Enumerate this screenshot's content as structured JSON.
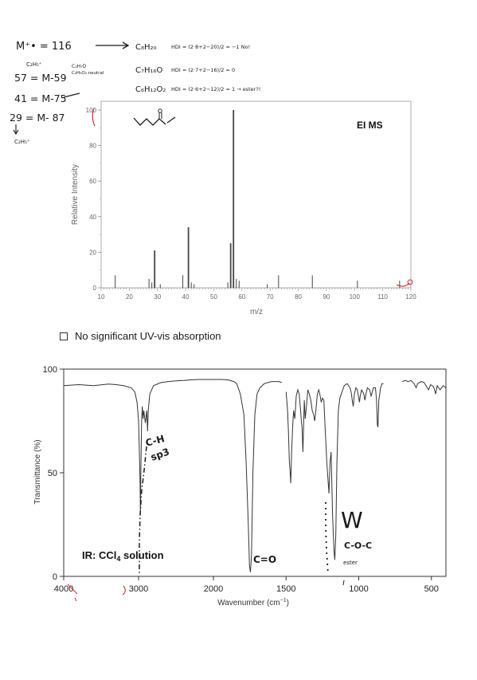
{
  "notes": {
    "m_line": "M⁺• = 116",
    "f57": "57 = M-59",
    "f57_sub": "C₂H₅⁺",
    "f57_side1": "C₃H₇O",
    "f57_side2": "C₂H₅O₂ neutral",
    "f41": "41 = M-75",
    "f29": "29 = M- 87",
    "f29_sub": "C₂H₅⁺",
    "formula1": "C₈H₂₀",
    "formula1_calc": "HDI = (2·8+2−20)/2 = −1  No!",
    "formula2": "C₇H₁₆O",
    "formula2_calc": "HDI = (2·7+2−16)/2 = 0",
    "formula3": "C₆H₁₂O₂",
    "formula3_calc": "HDI = (2·6+2−12)/2 = 1  → ester?!",
    "ir_ch": "C-H",
    "ir_sp3": "sp3",
    "ir_co": "C=O",
    "ir_w": "W",
    "ir_coc": "C-O-C",
    "ir_ester": "ester"
  },
  "uv_note": "No significant UV-vis absorption",
  "chart_data": [
    {
      "type": "bar",
      "title": "EI MS",
      "xlabel": "m/z",
      "ylabel": "Relative Intensity",
      "xlim": [
        10,
        120
      ],
      "ylim": [
        0,
        100
      ],
      "xticks": [
        10,
        20,
        30,
        40,
        50,
        60,
        70,
        80,
        90,
        100,
        110,
        120
      ],
      "yticks": [
        0,
        20,
        40,
        60,
        80,
        100
      ],
      "grid": false,
      "peaks": [
        {
          "mz": 15,
          "rel": 7
        },
        {
          "mz": 27,
          "rel": 5
        },
        {
          "mz": 28,
          "rel": 3
        },
        {
          "mz": 29,
          "rel": 21
        },
        {
          "mz": 31,
          "rel": 2
        },
        {
          "mz": 39,
          "rel": 7
        },
        {
          "mz": 41,
          "rel": 34
        },
        {
          "mz": 42,
          "rel": 3
        },
        {
          "mz": 43,
          "rel": 2
        },
        {
          "mz": 55,
          "rel": 3
        },
        {
          "mz": 56,
          "rel": 25
        },
        {
          "mz": 57,
          "rel": 100
        },
        {
          "mz": 58,
          "rel": 5
        },
        {
          "mz": 59,
          "rel": 4
        },
        {
          "mz": 69,
          "rel": 2
        },
        {
          "mz": 73,
          "rel": 7
        },
        {
          "mz": 85,
          "rel": 7
        },
        {
          "mz": 101,
          "rel": 4
        },
        {
          "mz": 116,
          "rel": 4
        }
      ]
    },
    {
      "type": "line",
      "title": "IR: CCl4 solution",
      "xlabel": "Wavenumber (cm⁻¹)",
      "ylabel": "Transmittance (%)",
      "xlim": [
        4000,
        400
      ],
      "ylim": [
        0,
        100
      ],
      "xticks": [
        4000,
        3000,
        2000,
        1500,
        1000,
        500
      ],
      "yticks": [
        0,
        50,
        100
      ],
      "grid": false,
      "segments": [
        [
          [
            4000,
            92
          ],
          [
            3800,
            92.5
          ],
          [
            3600,
            92
          ],
          [
            3400,
            92.8
          ],
          [
            3300,
            92.5
          ],
          [
            3200,
            92
          ],
          [
            3100,
            91
          ],
          [
            3050,
            89
          ],
          [
            3020,
            84
          ],
          [
            3000,
            75
          ],
          [
            2990,
            62
          ],
          [
            2980,
            45
          ],
          [
            2975,
            30
          ],
          [
            2970,
            48
          ],
          [
            2960,
            75
          ],
          [
            2950,
            82
          ],
          [
            2940,
            76
          ],
          [
            2930,
            80
          ],
          [
            2910,
            74
          ],
          [
            2890,
            80
          ],
          [
            2880,
            70
          ],
          [
            2870,
            80
          ],
          [
            2850,
            88
          ],
          [
            2800,
            92
          ],
          [
            2700,
            93.5
          ],
          [
            2600,
            94
          ],
          [
            2500,
            94.3
          ],
          [
            2400,
            94.5
          ],
          [
            2300,
            94.8
          ],
          [
            2200,
            95
          ],
          [
            2100,
            95
          ],
          [
            2000,
            95
          ],
          [
            1950,
            95
          ],
          [
            1900,
            94.8
          ],
          [
            1860,
            94
          ],
          [
            1840,
            93
          ],
          [
            1815,
            88
          ],
          [
            1790,
            78
          ],
          [
            1775,
            55
          ],
          [
            1760,
            25
          ],
          [
            1752,
            5
          ],
          [
            1745,
            2
          ],
          [
            1738,
            10
          ],
          [
            1728,
            50
          ],
          [
            1715,
            78
          ],
          [
            1700,
            88
          ],
          [
            1680,
            91
          ],
          [
            1650,
            93
          ],
          [
            1600,
            94
          ],
          [
            1550,
            94
          ],
          [
            1530,
            93.5
          ]
        ],
        [
          [
            1500,
            89
          ],
          [
            1490,
            80
          ],
          [
            1484,
            70
          ],
          [
            1477,
            55
          ],
          [
            1472,
            50
          ],
          [
            1468,
            45
          ],
          [
            1462,
            60
          ],
          [
            1455,
            72
          ],
          [
            1448,
            80
          ],
          [
            1440,
            76
          ],
          [
            1430,
            87
          ],
          [
            1420,
            90
          ],
          [
            1410,
            88
          ],
          [
            1400,
            80
          ],
          [
            1395,
            75
          ],
          [
            1390,
            72
          ],
          [
            1384,
            60
          ],
          [
            1375,
            85
          ],
          [
            1368,
            76
          ],
          [
            1360,
            82
          ],
          [
            1350,
            90
          ],
          [
            1340,
            88
          ],
          [
            1330,
            85
          ],
          [
            1320,
            80
          ],
          [
            1310,
            78
          ],
          [
            1303,
            75
          ],
          [
            1295,
            80
          ],
          [
            1285,
            88
          ],
          [
            1275,
            90
          ],
          [
            1265,
            87
          ],
          [
            1258,
            84
          ],
          [
            1250,
            86
          ],
          [
            1240,
            85
          ],
          [
            1230,
            70
          ],
          [
            1220,
            55
          ],
          [
            1210,
            45
          ],
          [
            1205,
            40
          ],
          [
            1198,
            55
          ],
          [
            1190,
            60
          ],
          [
            1185,
            45
          ],
          [
            1180,
            30
          ],
          [
            1175,
            20
          ],
          [
            1170,
            12
          ],
          [
            1165,
            8
          ],
          [
            1158,
            20
          ],
          [
            1150,
            55
          ],
          [
            1140,
            80
          ],
          [
            1130,
            86
          ],
          [
            1120,
            88
          ],
          [
            1110,
            90
          ],
          [
            1100,
            92
          ],
          [
            1080,
            93
          ],
          [
            1060,
            91
          ],
          [
            1050,
            88
          ],
          [
            1045,
            85
          ],
          [
            1038,
            82
          ],
          [
            1030,
            88
          ],
          [
            1020,
            91
          ],
          [
            1010,
            90
          ],
          [
            1000,
            86
          ],
          [
            995,
            84
          ],
          [
            990,
            87
          ],
          [
            980,
            90
          ],
          [
            965,
            88
          ],
          [
            958,
            85
          ],
          [
            950,
            88
          ],
          [
            940,
            91
          ],
          [
            925,
            90
          ],
          [
            915,
            87
          ],
          [
            910,
            88
          ],
          [
            900,
            91
          ],
          [
            885,
            91
          ],
          [
            878,
            85
          ],
          [
            872,
            73
          ],
          [
            868,
            72
          ],
          [
            862,
            85
          ],
          [
            850,
            91
          ],
          [
            840,
            93
          ],
          [
            830,
            93
          ]
        ],
        [
          [
            700,
            94
          ],
          [
            680,
            94.5
          ],
          [
            660,
            94
          ],
          [
            640,
            94.5
          ],
          [
            620,
            93
          ],
          [
            605,
            91
          ],
          [
            595,
            93
          ],
          [
            570,
            94
          ],
          [
            550,
            93.5
          ],
          [
            520,
            90
          ],
          [
            505,
            92.5
          ],
          [
            485,
            91.5
          ],
          [
            470,
            88
          ],
          [
            460,
            92
          ],
          [
            440,
            90
          ],
          [
            420,
            92
          ],
          [
            400,
            91
          ]
        ]
      ]
    }
  ]
}
